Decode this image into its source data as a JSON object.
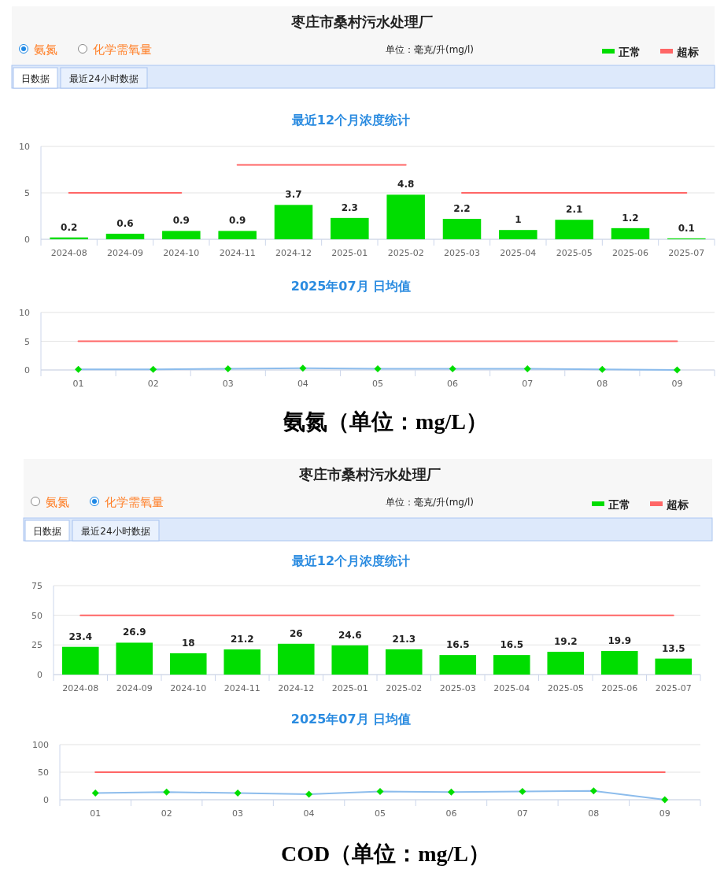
{
  "chart_data": [
    {
      "type": "bar",
      "title": "最近12个月浓度统计",
      "categories": [
        "2024-08",
        "2024-09",
        "2024-10",
        "2024-11",
        "2024-12",
        "2025-01",
        "2025-02",
        "2025-03",
        "2025-04",
        "2025-05",
        "2025-06",
        "2025-07"
      ],
      "series": [
        {
          "name": "正常",
          "color": "#00dd00",
          "values": [
            0.2,
            0.6,
            0.9,
            0.9,
            3.7,
            2.3,
            4.8,
            2.2,
            1,
            2.1,
            1.2,
            0.1
          ],
          "value_labels": [
            "0.2",
            "0.6",
            "0.9",
            "0.9",
            "3.7",
            "2.3",
            "4.8",
            "2.2",
            "1",
            "2.1",
            "1.2",
            "0.1"
          ]
        },
        {
          "name": "超标",
          "color": "#ff6666",
          "values": [
            null,
            null,
            null,
            null,
            null,
            null,
            null,
            null,
            null,
            null,
            null,
            null
          ]
        },
        {
          "type": "line",
          "color": "#ff6666",
          "marker": "none",
          "values": [
            5,
            5,
            5,
            null,
            null,
            null,
            null,
            null,
            null,
            null,
            null,
            null
          ]
        },
        {
          "type": "line",
          "color": "#ff6666",
          "marker": "none",
          "values": [
            null,
            null,
            null,
            8,
            8,
            8,
            8,
            null,
            null,
            null,
            null,
            null
          ]
        },
        {
          "type": "line",
          "color": "#ff6666",
          "marker": "none",
          "values": [
            null,
            null,
            null,
            null,
            null,
            null,
            null,
            5,
            5,
            5,
            5,
            5
          ]
        }
      ],
      "ylim": [
        0,
        10
      ],
      "yticks": [
        0,
        5,
        10
      ],
      "grid": "y",
      "legend": "top right",
      "annotations": [
        "枣庄市桑村污水处理厂",
        "氨氮",
        "化学需氧量",
        "单位：毫克/升(mg/l)",
        "日数据",
        "最近24小时数据"
      ]
    },
    {
      "type": "line",
      "title": "2025年07月 日均值",
      "categories": [
        "01",
        "02",
        "03",
        "04",
        "05",
        "06",
        "07",
        "08",
        "09"
      ],
      "series": [
        {
          "color": "#ff6666",
          "marker": "none",
          "values": [
            5,
            5,
            5,
            5,
            5,
            5,
            5,
            5,
            5
          ]
        },
        {
          "color": "#8cbcec",
          "marker": "diamond",
          "colors": [
            "#00dd00",
            "#00dd00",
            "#00dd00",
            "#00dd00",
            "#00dd00",
            "#00dd00",
            "#00dd00",
            "#00dd00",
            "#00dd00"
          ],
          "values": [
            0.1,
            0.1,
            0.2,
            0.3,
            0.2,
            0.2,
            0.2,
            0.1,
            0
          ]
        }
      ],
      "ylim": [
        0,
        10
      ],
      "yticks": [
        0,
        5,
        10
      ],
      "grid": "y",
      "annotations": [
        "氨氮（单位：mg/L）"
      ]
    },
    {
      "type": "bar",
      "title": "最近12个月浓度统计",
      "categories": [
        "2024-08",
        "2024-09",
        "2024-10",
        "2024-11",
        "2024-12",
        "2025-01",
        "2025-02",
        "2025-03",
        "2025-04",
        "2025-05",
        "2025-06",
        "2025-07"
      ],
      "series": [
        {
          "name": "正常",
          "color": "#00dd00",
          "values": [
            23.4,
            26.9,
            18,
            21.2,
            26,
            24.6,
            21.3,
            16.5,
            16.5,
            19.2,
            19.9,
            13.5
          ],
          "value_labels": [
            "23.4",
            "26.9",
            "18",
            "21.2",
            "26",
            "24.6",
            "21.3",
            "16.5",
            "16.5",
            "19.2",
            "19.9",
            "13.5"
          ]
        },
        {
          "name": "超标",
          "color": "#ff6666",
          "values": [
            null,
            null,
            null,
            null,
            null,
            null,
            null,
            null,
            null,
            null,
            null,
            null
          ]
        },
        {
          "type": "line",
          "color": "#ff6666",
          "marker": "none",
          "values": [
            50,
            50,
            50,
            50,
            50,
            50,
            50,
            50,
            50,
            50,
            50,
            50
          ]
        }
      ],
      "ylim": [
        0,
        75
      ],
      "yticks": [
        0,
        25,
        50,
        75
      ],
      "grid": "y",
      "legend": "top right",
      "annotations": [
        "枣庄市桑村污水处理厂",
        "氨氮",
        "化学需氧量",
        "单位：毫克/升(mg/l)",
        "日数据",
        "最近24小时数据"
      ]
    },
    {
      "type": "line",
      "title": "2025年07月 日均值",
      "categories": [
        "01",
        "02",
        "03",
        "04",
        "05",
        "06",
        "07",
        "08",
        "09"
      ],
      "series": [
        {
          "color": "#ff6666",
          "marker": "none",
          "values": [
            50,
            50,
            50,
            50,
            50,
            50,
            50,
            50,
            50
          ]
        },
        {
          "color": "#8cbcec",
          "marker": "diamond",
          "colors": [
            "#00dd00",
            "#00dd00",
            "#00dd00",
            "#00dd00",
            "#00dd00",
            "#00dd00",
            "#00dd00",
            "#00dd00",
            "#00dd00"
          ],
          "values": [
            12,
            14,
            12,
            10,
            15,
            14,
            15,
            16,
            0
          ]
        }
      ],
      "ylim": [
        0,
        100
      ],
      "yticks": [
        0,
        50,
        100
      ],
      "grid": "y",
      "annotations": [
        "COD（单位：mg/L）"
      ]
    }
  ]
}
